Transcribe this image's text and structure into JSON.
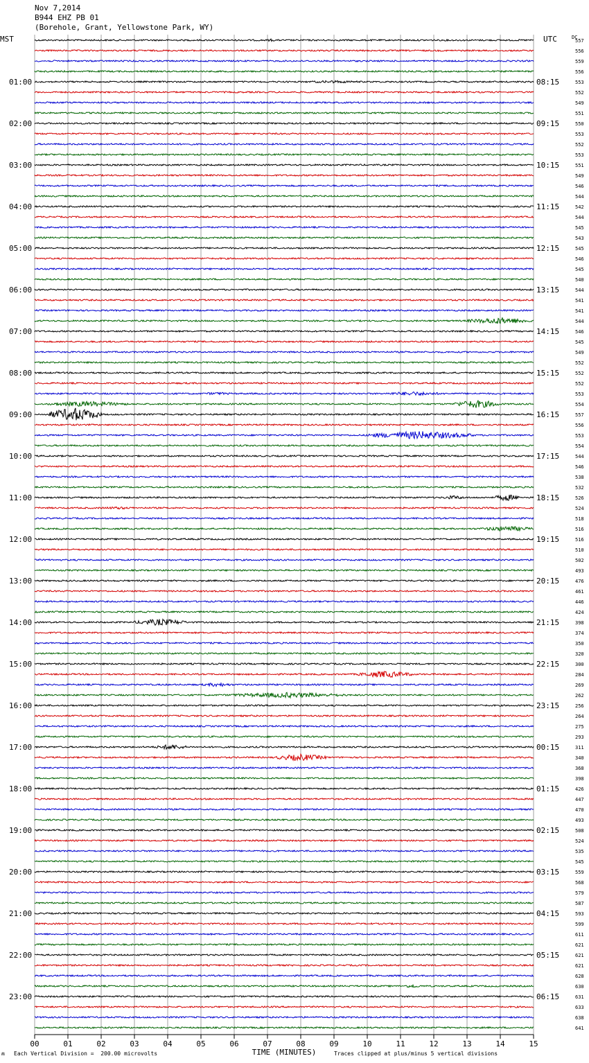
{
  "header": {
    "date": "Nov 7,2014",
    "station": "B944 EHZ PB 01",
    "location": "(Borehole, Grant, Yellowstone Park, WY)"
  },
  "left_axis_label": "MST",
  "right_axis_label": "UTC",
  "dc_label": "DC",
  "footer": {
    "left_mark": "ʍ",
    "scale_note": "Each Vertical Division =  200.00 microvolts",
    "clip_note": "Traces clipped at plus/minus 5 vertical divisions"
  },
  "colors": {
    "trace_cycle": [
      "#000000",
      "#d40000",
      "#0000d0",
      "#006400"
    ],
    "grid": "#8a8a8a"
  },
  "chart_data": {
    "type": "line",
    "title": "B944 EHZ PB 01",
    "xlabel": "TIME (MINUTES)",
    "ylabel": "",
    "xlim": [
      0,
      15
    ],
    "x_ticks": [
      "00",
      "01",
      "02",
      "03",
      "04",
      "05",
      "06",
      "07",
      "08",
      "09",
      "10",
      "11",
      "12",
      "13",
      "14",
      "15"
    ],
    "traces_per_hour": 4,
    "hour_labels_mst": [
      "01:00",
      "02:00",
      "03:00",
      "04:00",
      "05:00",
      "06:00",
      "07:00",
      "08:00",
      "09:00",
      "10:00",
      "11:00",
      "12:00",
      "13:00",
      "14:00",
      "15:00",
      "16:00",
      "17:00",
      "18:00",
      "19:00",
      "20:00",
      "21:00",
      "22:00",
      "23:00"
    ],
    "hour_labels_utc": [
      "08:15",
      "09:15",
      "10:15",
      "11:15",
      "12:15",
      "13:15",
      "14:15",
      "15:15",
      "16:15",
      "17:15",
      "18:15",
      "19:15",
      "20:15",
      "21:15",
      "22:15",
      "23:15",
      "00:15",
      "01:15",
      "02:15",
      "03:15",
      "04:15",
      "05:15",
      "06:15"
    ],
    "dc_offsets": [
      557,
      556,
      559,
      556,
      553,
      552,
      549,
      551,
      550,
      553,
      552,
      553,
      551,
      549,
      546,
      544,
      542,
      544,
      545,
      543,
      545,
      546,
      545,
      540,
      544,
      541,
      541,
      544,
      546,
      545,
      549,
      552,
      552,
      552,
      553,
      554,
      557,
      556,
      553,
      554,
      544,
      546,
      538,
      532,
      526,
      524,
      518,
      516,
      516,
      510,
      502,
      493,
      476,
      461,
      446,
      424,
      398,
      374,
      350,
      320,
      300,
      284,
      269,
      262,
      256,
      264,
      275,
      293,
      311,
      340,
      368,
      398,
      426,
      447,
      470,
      493,
      508,
      524,
      535,
      545,
      559,
      568,
      579,
      587,
      593,
      599,
      611,
      621,
      621,
      621,
      628,
      630,
      631,
      633,
      638,
      641
    ],
    "events": [
      {
        "trace": 0,
        "start": 6.9,
        "end": 7.3,
        "amp": 2
      },
      {
        "trace": 4,
        "start": 7.8,
        "end": 10.2,
        "amp": 2
      },
      {
        "trace": 27,
        "start": 13.0,
        "end": 15.0,
        "amp": 5
      },
      {
        "trace": 34,
        "start": 4.8,
        "end": 6.2,
        "amp": 2
      },
      {
        "trace": 34,
        "start": 10.4,
        "end": 12.4,
        "amp": 3
      },
      {
        "trace": 35,
        "start": 0.4,
        "end": 2.8,
        "amp": 4
      },
      {
        "trace": 35,
        "start": 12.6,
        "end": 14.0,
        "amp": 6
      },
      {
        "trace": 36,
        "start": 0.4,
        "end": 2.0,
        "amp": 10
      },
      {
        "trace": 38,
        "start": 10.0,
        "end": 13.2,
        "amp": 6
      },
      {
        "trace": 44,
        "start": 12.2,
        "end": 13.0,
        "amp": 3
      },
      {
        "trace": 44,
        "start": 13.8,
        "end": 14.6,
        "amp": 5
      },
      {
        "trace": 45,
        "start": 1.8,
        "end": 3.2,
        "amp": 2
      },
      {
        "trace": 47,
        "start": 13.4,
        "end": 15.0,
        "amp": 4
      },
      {
        "trace": 56,
        "start": 3.0,
        "end": 4.6,
        "amp": 5
      },
      {
        "trace": 61,
        "start": 9.7,
        "end": 11.4,
        "amp": 5
      },
      {
        "trace": 62,
        "start": 5.0,
        "end": 6.0,
        "amp": 3
      },
      {
        "trace": 63,
        "start": 5.8,
        "end": 9.4,
        "amp": 4
      },
      {
        "trace": 68,
        "start": 3.6,
        "end": 4.6,
        "amp": 4
      },
      {
        "trace": 69,
        "start": 7.2,
        "end": 8.8,
        "amp": 5
      },
      {
        "trace": 91,
        "start": 11.1,
        "end": 11.6,
        "amp": 3
      }
    ]
  }
}
